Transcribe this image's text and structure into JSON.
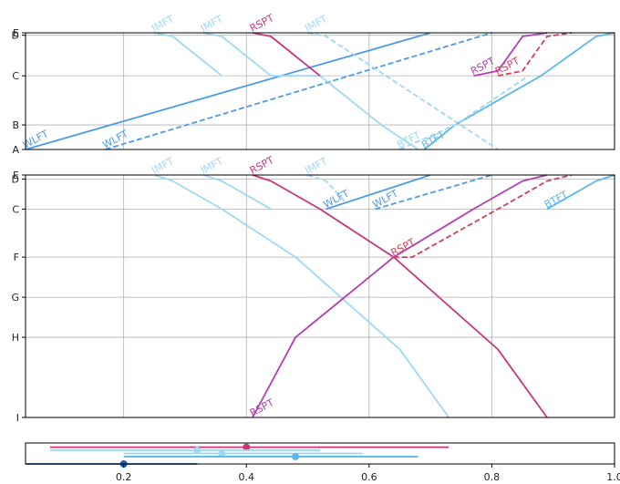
{
  "chart_data": [
    {
      "type": "line",
      "panel": "top",
      "xlim": [
        0.04,
        1.0
      ],
      "y_ticks": [
        {
          "label": "A",
          "value": 0
        },
        {
          "label": "B",
          "value": 1
        },
        {
          "label": "C",
          "value": 3
        },
        {
          "label": "D",
          "value": 4.65
        },
        {
          "label": "E",
          "value": 4.75
        }
      ],
      "grid": true,
      "series": [
        {
          "name": "WLFT",
          "color": "#4c9be8",
          "dash": false,
          "label_at": [
            0.04,
            0
          ],
          "points": [
            [
              0.04,
              0
            ],
            [
              0.7,
              4.75
            ]
          ]
        },
        {
          "name": "WLFT",
          "color": "#4c9be8",
          "dash": true,
          "label_at": [
            0.17,
            0
          ],
          "points": [
            [
              0.17,
              0
            ],
            [
              0.8,
              4.75
            ]
          ]
        },
        {
          "name": "IMFT",
          "color": "#9ed8f4",
          "dash": false,
          "label_at": [
            0.25,
            4.75
          ],
          "points": [
            [
              0.25,
              4.75
            ],
            [
              0.28,
              4.6
            ],
            [
              0.36,
              3.0
            ]
          ]
        },
        {
          "name": "IMFT",
          "color": "#9ed8f4",
          "dash": false,
          "label_at": [
            0.33,
            4.75
          ],
          "points": [
            [
              0.33,
              4.75
            ],
            [
              0.36,
              4.6
            ],
            [
              0.44,
              3.0
            ],
            [
              0.52,
              3.0
            ],
            [
              0.62,
              1.0
            ],
            [
              0.68,
              0
            ]
          ]
        },
        {
          "name": "RSPT",
          "color": "#c8377c",
          "dash": false,
          "label_at": [
            0.41,
            4.75
          ],
          "points": [
            [
              0.41,
              4.75
            ],
            [
              0.44,
              4.6
            ],
            [
              0.52,
              3.0
            ]
          ]
        },
        {
          "name": "IMFT",
          "color": "#9ed8f4",
          "dash": true,
          "label_at": [
            0.5,
            4.75
          ],
          "points": [
            [
              0.5,
              4.75
            ],
            [
              0.53,
              4.6
            ],
            [
              0.81,
              0
            ]
          ]
        },
        {
          "name": "RSPT",
          "color": "#b53cb5",
          "dash": false,
          "label_at": [
            0.77,
            3.0
          ],
          "points": [
            [
              0.77,
              3.0
            ],
            [
              0.81,
              3.2
            ],
            [
              0.85,
              4.6
            ],
            [
              0.89,
              4.75
            ]
          ]
        },
        {
          "name": "RSPT",
          "color": "#cf4058",
          "dash": true,
          "label_at": [
            0.81,
            3.0
          ],
          "points": [
            [
              0.81,
              3.0
            ],
            [
              0.85,
              3.2
            ],
            [
              0.89,
              4.6
            ],
            [
              0.93,
              4.75
            ]
          ]
        },
        {
          "name": "BTFT",
          "color": "#5cb7e8",
          "dash": false,
          "label_at": [
            0.69,
            0
          ],
          "points": [
            [
              0.69,
              0
            ],
            [
              0.74,
              1.0
            ],
            [
              0.88,
              3.0
            ],
            [
              0.97,
              4.6
            ],
            [
              1.0,
              4.75
            ]
          ]
        },
        {
          "name": "BTFT",
          "color": "#9ed8f4",
          "dash": true,
          "label_at": [
            0.65,
            0
          ],
          "points": [
            [
              0.65,
              0
            ],
            [
              0.74,
              1.0
            ],
            [
              0.86,
              3.0
            ]
          ]
        }
      ]
    },
    {
      "type": "line",
      "panel": "middle",
      "xlim": [
        0.04,
        1.0
      ],
      "y_ticks": [
        {
          "label": "I",
          "value": 0
        },
        {
          "label": "H",
          "value": 2
        },
        {
          "label": "G",
          "value": 3
        },
        {
          "label": "F",
          "value": 4
        },
        {
          "label": "C",
          "value": 5.2
        },
        {
          "label": "D",
          "value": 5.95
        },
        {
          "label": "E",
          "value": 6.05
        }
      ],
      "grid": true,
      "series": [
        {
          "name": "IMFT",
          "color": "#9ed8f4",
          "dash": false,
          "label_at": [
            0.25,
            6.05
          ],
          "points": [
            [
              0.25,
              6.05
            ],
            [
              0.28,
              5.9
            ],
            [
              0.36,
              5.2
            ],
            [
              0.48,
              4.0
            ],
            [
              0.65,
              1.7
            ],
            [
              0.73,
              0
            ]
          ]
        },
        {
          "name": "IMFT",
          "color": "#9ed8f4",
          "dash": false,
          "label_at": [
            0.33,
            6.05
          ],
          "points": [
            [
              0.33,
              6.05
            ],
            [
              0.36,
              5.9
            ],
            [
              0.44,
              5.2
            ]
          ]
        },
        {
          "name": "RSPT",
          "color": "#c8377c",
          "dash": false,
          "label_at": [
            0.41,
            6.05
          ],
          "points": [
            [
              0.41,
              6.05
            ],
            [
              0.44,
              5.9
            ],
            [
              0.52,
              5.2
            ],
            [
              0.64,
              4.0
            ],
            [
              0.81,
              1.7
            ],
            [
              0.89,
              0
            ]
          ]
        },
        {
          "name": "IMFT",
          "color": "#9ed8f4",
          "dash": true,
          "label_at": [
            0.5,
            6.05
          ],
          "points": [
            [
              0.5,
              6.05
            ],
            [
              0.53,
              5.9
            ],
            [
              0.56,
              5.4
            ]
          ]
        },
        {
          "name": "WLFT",
          "color": "#4c9be8",
          "dash": false,
          "label_at": [
            0.53,
            5.2
          ],
          "points": [
            [
              0.53,
              5.2
            ],
            [
              0.7,
              6.05
            ]
          ]
        },
        {
          "name": "WLFT",
          "color": "#4c9be8",
          "dash": true,
          "label_at": [
            0.61,
            5.2
          ],
          "points": [
            [
              0.61,
              5.2
            ],
            [
              0.8,
              6.05
            ]
          ]
        },
        {
          "name": "RSPT",
          "color": "#b53cb5",
          "dash": false,
          "label_at": [
            0.41,
            0
          ],
          "points": [
            [
              0.41,
              0
            ],
            [
              0.48,
              2.0
            ],
            [
              0.64,
              4.0
            ],
            [
              0.77,
              5.2
            ],
            [
              0.85,
              5.9
            ],
            [
              0.89,
              6.05
            ]
          ]
        },
        {
          "name": "RSPT",
          "color": "#cf4058",
          "dash": true,
          "label_at": [
            0.64,
            4.0
          ],
          "points": [
            [
              0.64,
              4.0
            ],
            [
              0.67,
              4.0
            ],
            [
              0.81,
              5.2
            ],
            [
              0.89,
              5.9
            ],
            [
              0.93,
              6.05
            ]
          ]
        },
        {
          "name": "BTFT",
          "color": "#5cb7e8",
          "dash": false,
          "label_at": [
            0.89,
            5.2
          ],
          "points": [
            [
              0.89,
              5.2
            ],
            [
              0.97,
              5.9
            ],
            [
              1.0,
              6.05
            ]
          ]
        }
      ]
    },
    {
      "type": "scatter",
      "panel": "bottom",
      "xlim": [
        0.04,
        1.0
      ],
      "x_ticks": [
        "0.2",
        "0.4",
        "0.6",
        "0.8",
        "1.0"
      ],
      "x_tick_values": [
        0.2,
        0.4,
        0.6,
        0.8,
        1.0
      ],
      "intervals": [
        {
          "color": "#c8377c",
          "low": 0.08,
          "high": 0.73,
          "point": 0.4,
          "level": 0.2
        },
        {
          "color": "#9ed8f4",
          "low": 0.08,
          "high": 0.52,
          "point": 0.32,
          "level": 0.35
        },
        {
          "color": "#9ed8f4",
          "low": 0.2,
          "high": 0.59,
          "point": 0.36,
          "level": 0.5
        },
        {
          "color": "#5cb7e8",
          "low": 0.2,
          "high": 0.68,
          "point": 0.48,
          "level": 0.65
        },
        {
          "color": "#1f5fb0",
          "low": 0.04,
          "high": 0.32,
          "point": 0.2,
          "level": 1.0
        }
      ]
    }
  ]
}
